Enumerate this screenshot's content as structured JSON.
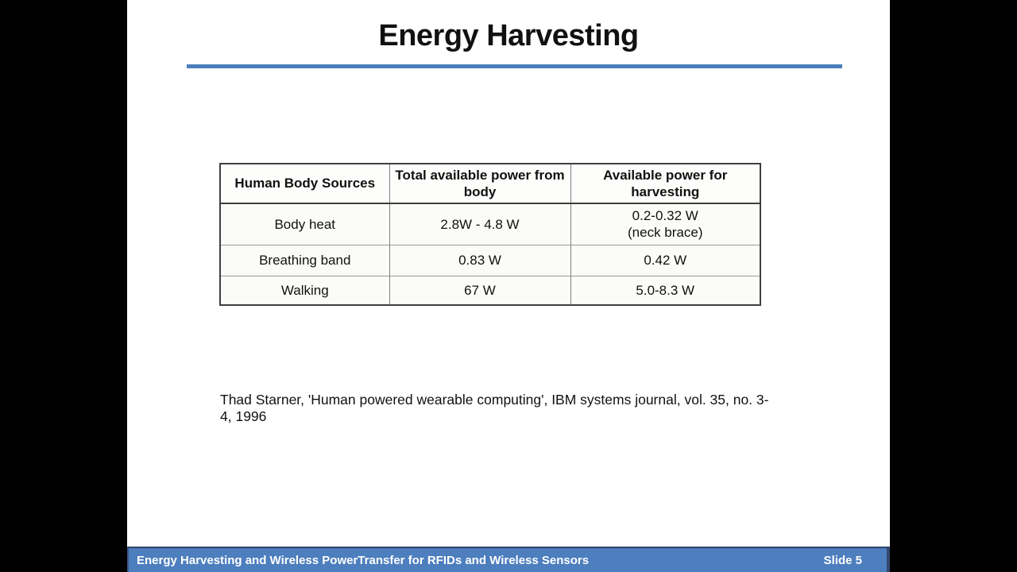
{
  "slide": {
    "title": "Energy Harvesting",
    "table": {
      "headers": [
        "Human Body Sources",
        "Total available power from body",
        "Available power for harvesting"
      ],
      "rows": [
        {
          "cells": [
            "Body heat",
            "2.8W - 4.8 W",
            "0.2-0.32 W\n(neck brace)"
          ]
        },
        {
          "cells": [
            "Breathing band",
            "0.83 W",
            "0.42 W"
          ]
        },
        {
          "cells": [
            "Walking",
            "67 W",
            "5.0-8.3 W"
          ]
        }
      ]
    },
    "citation": "Thad Starner, 'Human powered wearable computing', IBM systems journal, vol. 35, no. 3-4, 1996",
    "footer": {
      "title": "Energy Harvesting and Wireless PowerTransfer for RFIDs and Wireless Sensors",
      "slide_number": "Slide 5"
    },
    "colors": {
      "accent_rule": "#4a7eb8",
      "footer_bar": "#4d7ebe",
      "footer_border": "#2e4366",
      "table_outer_border": "#3f3f3f",
      "table_inner_border": "#7f7f7f",
      "cell_background": "#fbfbf8",
      "background_bars": "#000000",
      "slide_background": "#ffffff"
    }
  }
}
